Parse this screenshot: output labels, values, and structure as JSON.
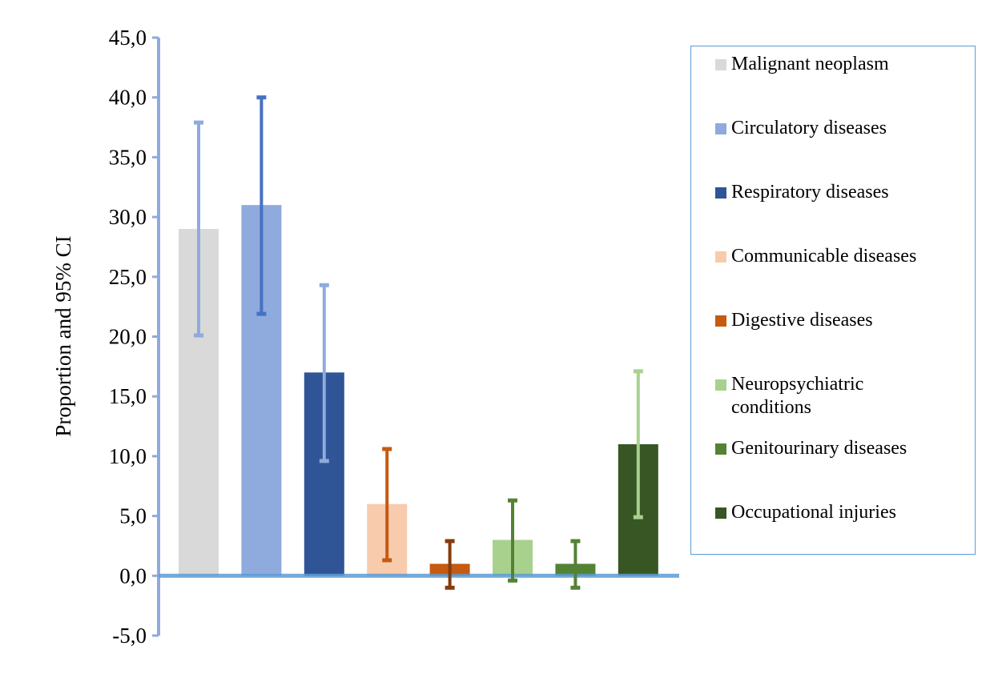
{
  "chart_data": {
    "type": "bar",
    "title": "",
    "xlabel": "",
    "ylabel": "Proportion and 95% CI",
    "ylim": [
      -5,
      45
    ],
    "yticks": [
      "45,0",
      "40,0",
      "35,0",
      "30,0",
      "25,0",
      "20,0",
      "15,0",
      "10,0",
      "5,0",
      "0,0",
      "-5,0"
    ],
    "ytick_values": [
      45,
      40,
      35,
      30,
      25,
      20,
      15,
      10,
      5,
      0,
      -5
    ],
    "legend_position": "right",
    "categories": [
      "Malignant neoplasm",
      "Circulatory diseases",
      "Respiratory diseases",
      "Communicable diseases",
      "Digestive diseases",
      "Neuropsychiatric conditions",
      "Genitourinary diseases",
      "Occupational injuries"
    ],
    "values": [
      29.0,
      31.0,
      17.0,
      6.0,
      1.0,
      3.0,
      1.0,
      11.0
    ],
    "ci_lower": [
      20.1,
      21.9,
      9.6,
      1.3,
      -1.0,
      -0.4,
      -1.0,
      4.9
    ],
    "ci_upper": [
      37.9,
      40.0,
      24.3,
      10.6,
      2.9,
      6.3,
      2.9,
      17.1
    ],
    "bar_colors": [
      "#d9d9d9",
      "#8faadc",
      "#2f5597",
      "#f8cbad",
      "#c55a11",
      "#a9d18e",
      "#548235",
      "#375623"
    ],
    "error_colors": [
      "#8faadc",
      "#4472c4",
      "#8faadc",
      "#c55a11",
      "#843c0c",
      "#548235",
      "#548235",
      "#a9d18e"
    ],
    "axis_color": "#8faadc",
    "zero_line_color": "#5b9bd5"
  }
}
